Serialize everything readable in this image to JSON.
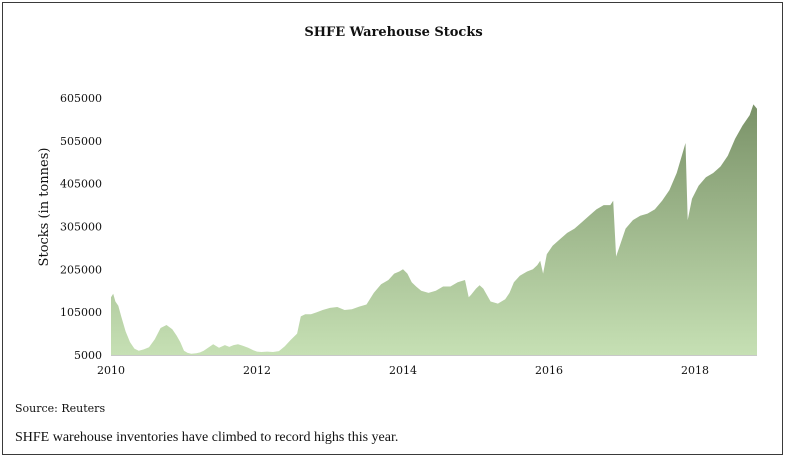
{
  "chart_data": {
    "type": "area",
    "title": "SHFE Warehouse Stocks",
    "xlabel": "",
    "ylabel": "Stocks (in tonnes)",
    "x_ticks": [
      "2010",
      "2012",
      "2014",
      "2016",
      "2018"
    ],
    "y_ticks": [
      "5000",
      "105000",
      "205000",
      "305000",
      "405000",
      "505000",
      "605000"
    ],
    "xlim": [
      2010.0,
      2018.85
    ],
    "ylim": [
      5000,
      605000
    ],
    "grid": false,
    "legend": "none",
    "fill_color_top": "#7a9268",
    "fill_color_bottom": "#c6e0b4",
    "series": [
      {
        "x": [
          2010.0,
          2010.03,
          2010.06,
          2010.1,
          2010.14,
          2010.2,
          2010.26,
          2010.32,
          2010.38,
          2010.45,
          2010.52,
          2010.6,
          2010.68,
          2010.76,
          2010.84,
          2010.9,
          2010.95,
          2011.0,
          2011.05,
          2011.1,
          2011.17,
          2011.22,
          2011.27,
          2011.33,
          2011.4,
          2011.48,
          2011.56,
          2011.62,
          2011.68,
          2011.74,
          2011.8,
          2011.88,
          2011.95,
          2012.0,
          2012.06,
          2012.14,
          2012.22,
          2012.3,
          2012.38,
          2012.46,
          2012.55,
          2012.6,
          2012.66,
          2012.74,
          2012.82,
          2012.9,
          2013.0,
          2013.1,
          2013.2,
          2013.3,
          2013.4,
          2013.5,
          2013.6,
          2013.7,
          2013.8,
          2013.88,
          2013.95,
          2014.0,
          2014.06,
          2014.12,
          2014.18,
          2014.25,
          2014.35,
          2014.45,
          2014.55,
          2014.65,
          2014.75,
          2014.85,
          2014.9,
          2014.93,
          2015.0,
          2015.05,
          2015.1,
          2015.15,
          2015.2,
          2015.3,
          2015.4,
          2015.46,
          2015.52,
          2015.6,
          2015.7,
          2015.78,
          2015.84,
          2015.88,
          2015.92,
          2015.97,
          2016.05,
          2016.15,
          2016.25,
          2016.35,
          2016.45,
          2016.55,
          2016.65,
          2016.75,
          2016.84,
          2016.88,
          2016.92,
          2016.97,
          2017.05,
          2017.15,
          2017.25,
          2017.35,
          2017.45,
          2017.55,
          2017.65,
          2017.75,
          2017.82,
          2017.87,
          2017.9,
          2017.96,
          2018.05,
          2018.15,
          2018.25,
          2018.35,
          2018.45,
          2018.55,
          2018.65,
          2018.75,
          2018.8,
          2018.85
        ],
        "y": [
          140000,
          148000,
          130000,
          120000,
          95000,
          60000,
          35000,
          20000,
          15000,
          18000,
          23000,
          42000,
          68000,
          75000,
          65000,
          50000,
          35000,
          15000,
          10000,
          8000,
          9000,
          11000,
          15000,
          22000,
          30000,
          22000,
          28000,
          24000,
          28000,
          30000,
          27000,
          22000,
          16000,
          13000,
          12000,
          13000,
          12000,
          14000,
          25000,
          40000,
          55000,
          95000,
          100000,
          100000,
          105000,
          110000,
          115000,
          117000,
          110000,
          112000,
          118000,
          123000,
          150000,
          170000,
          180000,
          195000,
          200000,
          205000,
          195000,
          175000,
          165000,
          155000,
          150000,
          155000,
          165000,
          165000,
          175000,
          180000,
          140000,
          145000,
          160000,
          168000,
          160000,
          145000,
          130000,
          125000,
          135000,
          150000,
          175000,
          190000,
          200000,
          205000,
          215000,
          225000,
          195000,
          240000,
          260000,
          275000,
          290000,
          300000,
          315000,
          330000,
          345000,
          355000,
          355000,
          365000,
          235000,
          260000,
          300000,
          320000,
          330000,
          335000,
          345000,
          365000,
          390000,
          430000,
          470000,
          500000,
          320000,
          370000,
          400000,
          420000,
          430000,
          445000,
          470000,
          510000,
          540000,
          565000,
          590000,
          580000
        ]
      }
    ]
  },
  "source": "Source: Reuters",
  "caption": "SHFE warehouse inventories have climbed to record highs this year."
}
